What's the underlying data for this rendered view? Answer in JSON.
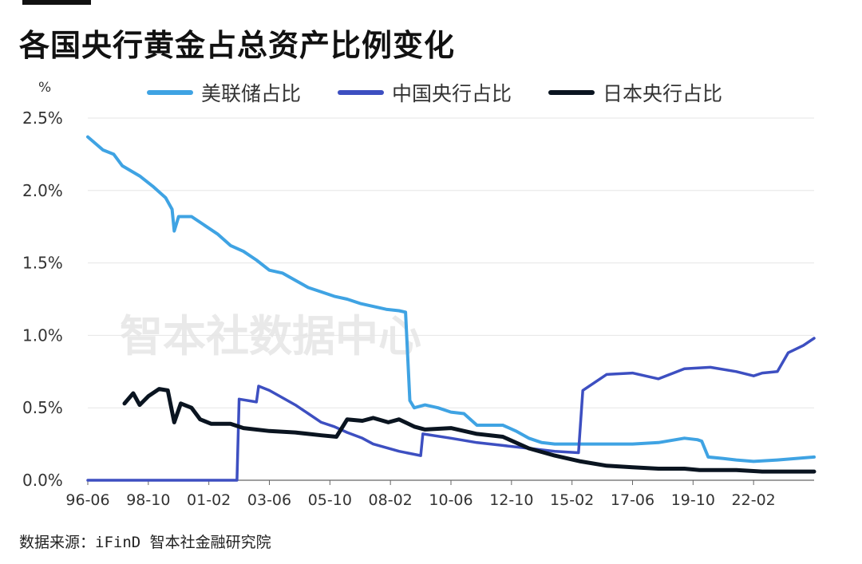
{
  "title": "各国央行黄金占总资产比例变化",
  "source": "数据来源：iFinD 智本社金融研究院",
  "watermark": "智本社数据中心",
  "chart_data": {
    "type": "line",
    "title": "各国央行黄金占总资产比例变化",
    "ylabel": "%",
    "xlabel": "",
    "ylim": [
      0,
      2.5
    ],
    "xlim": [
      "1996-06",
      "2024-06"
    ],
    "y_ticks": [
      0,
      0.5,
      1.0,
      1.5,
      2.0,
      2.5
    ],
    "y_tick_labels": [
      "0.0%",
      "0.5%",
      "1.0%",
      "1.5%",
      "2.0%",
      "2.5%"
    ],
    "x_ticks": [
      "96-06",
      "98-10",
      "01-02",
      "03-06",
      "05-10",
      "08-02",
      "10-06",
      "12-10",
      "15-02",
      "17-06",
      "19-10",
      "22-02"
    ],
    "grid": "horizontal",
    "legend_position": "top",
    "series": [
      {
        "name": "美联储占比",
        "color": "#3fa3e3",
        "points": [
          [
            "1996-06",
            2.37
          ],
          [
            "1997-01",
            2.28
          ],
          [
            "1997-06",
            2.25
          ],
          [
            "1997-10",
            2.17
          ],
          [
            "1998-06",
            2.1
          ],
          [
            "1998-12",
            2.03
          ],
          [
            "1999-06",
            1.95
          ],
          [
            "1999-09",
            1.87
          ],
          [
            "1999-10",
            1.72
          ],
          [
            "1999-12",
            1.82
          ],
          [
            "2000-06",
            1.82
          ],
          [
            "2000-12",
            1.76
          ],
          [
            "2001-06",
            1.7
          ],
          [
            "2001-12",
            1.62
          ],
          [
            "2002-06",
            1.58
          ],
          [
            "2002-12",
            1.52
          ],
          [
            "2003-06",
            1.45
          ],
          [
            "2003-12",
            1.43
          ],
          [
            "2004-06",
            1.38
          ],
          [
            "2004-12",
            1.33
          ],
          [
            "2005-06",
            1.3
          ],
          [
            "2005-12",
            1.27
          ],
          [
            "2006-06",
            1.25
          ],
          [
            "2006-12",
            1.22
          ],
          [
            "2007-06",
            1.2
          ],
          [
            "2007-12",
            1.18
          ],
          [
            "2008-06",
            1.17
          ],
          [
            "2008-09",
            1.16
          ],
          [
            "2008-11",
            0.55
          ],
          [
            "2009-01",
            0.5
          ],
          [
            "2009-06",
            0.52
          ],
          [
            "2009-12",
            0.5
          ],
          [
            "2010-06",
            0.47
          ],
          [
            "2010-12",
            0.46
          ],
          [
            "2011-06",
            0.38
          ],
          [
            "2011-12",
            0.38
          ],
          [
            "2012-06",
            0.38
          ],
          [
            "2012-12",
            0.34
          ],
          [
            "2013-06",
            0.29
          ],
          [
            "2013-12",
            0.26
          ],
          [
            "2014-06",
            0.25
          ],
          [
            "2015-02",
            0.25
          ],
          [
            "2016-06",
            0.25
          ],
          [
            "2017-06",
            0.25
          ],
          [
            "2018-06",
            0.26
          ],
          [
            "2019-06",
            0.29
          ],
          [
            "2019-12",
            0.28
          ],
          [
            "2020-02",
            0.27
          ],
          [
            "2020-05",
            0.16
          ],
          [
            "2020-12",
            0.15
          ],
          [
            "2021-06",
            0.14
          ],
          [
            "2022-02",
            0.13
          ],
          [
            "2023-01",
            0.14
          ],
          [
            "2024-06",
            0.16
          ]
        ]
      },
      {
        "name": "中国央行占比",
        "color": "#3d4fc1",
        "points": [
          [
            "1996-06",
            0.0
          ],
          [
            "2002-03",
            0.0
          ],
          [
            "2002-04",
            0.56
          ],
          [
            "2002-12",
            0.54
          ],
          [
            "2003-01",
            0.65
          ],
          [
            "2003-06",
            0.62
          ],
          [
            "2003-12",
            0.57
          ],
          [
            "2004-06",
            0.52
          ],
          [
            "2004-12",
            0.46
          ],
          [
            "2005-06",
            0.4
          ],
          [
            "2005-12",
            0.37
          ],
          [
            "2006-06",
            0.33
          ],
          [
            "2007-01",
            0.29
          ],
          [
            "2007-06",
            0.25
          ],
          [
            "2008-06",
            0.2
          ],
          [
            "2009-04",
            0.17
          ],
          [
            "2009-05",
            0.32
          ],
          [
            "2010-06",
            0.29
          ],
          [
            "2011-06",
            0.26
          ],
          [
            "2012-06",
            0.24
          ],
          [
            "2013-06",
            0.22
          ],
          [
            "2014-06",
            0.2
          ],
          [
            "2015-05",
            0.19
          ],
          [
            "2015-07",
            0.62
          ],
          [
            "2016-06",
            0.73
          ],
          [
            "2017-06",
            0.74
          ],
          [
            "2018-06",
            0.7
          ],
          [
            "2019-06",
            0.77
          ],
          [
            "2020-06",
            0.78
          ],
          [
            "2021-06",
            0.75
          ],
          [
            "2022-02",
            0.72
          ],
          [
            "2022-06",
            0.74
          ],
          [
            "2023-01",
            0.75
          ],
          [
            "2023-06",
            0.88
          ],
          [
            "2024-01",
            0.93
          ],
          [
            "2024-06",
            0.98
          ]
        ]
      },
      {
        "name": "日本央行占比",
        "color": "#0a1420",
        "points": [
          [
            "1997-11",
            0.53
          ],
          [
            "1998-03",
            0.6
          ],
          [
            "1998-06",
            0.52
          ],
          [
            "1998-10",
            0.58
          ],
          [
            "1999-03",
            0.63
          ],
          [
            "1999-07",
            0.62
          ],
          [
            "1999-10",
            0.4
          ],
          [
            "2000-01",
            0.53
          ],
          [
            "2000-06",
            0.5
          ],
          [
            "2000-10",
            0.42
          ],
          [
            "2001-03",
            0.39
          ],
          [
            "2001-12",
            0.39
          ],
          [
            "2002-06",
            0.36
          ],
          [
            "2003-06",
            0.34
          ],
          [
            "2004-06",
            0.33
          ],
          [
            "2005-06",
            0.31
          ],
          [
            "2006-01",
            0.3
          ],
          [
            "2006-06",
            0.42
          ],
          [
            "2007-01",
            0.41
          ],
          [
            "2007-06",
            0.43
          ],
          [
            "2008-01",
            0.4
          ],
          [
            "2008-06",
            0.42
          ],
          [
            "2009-01",
            0.37
          ],
          [
            "2009-06",
            0.35
          ],
          [
            "2010-06",
            0.36
          ],
          [
            "2011-06",
            0.32
          ],
          [
            "2012-06",
            0.3
          ],
          [
            "2013-06",
            0.22
          ],
          [
            "2014-06",
            0.17
          ],
          [
            "2015-06",
            0.13
          ],
          [
            "2016-06",
            0.1
          ],
          [
            "2017-06",
            0.09
          ],
          [
            "2018-06",
            0.08
          ],
          [
            "2019-06",
            0.08
          ],
          [
            "2020-01",
            0.07
          ],
          [
            "2021-06",
            0.07
          ],
          [
            "2022-06",
            0.06
          ],
          [
            "2023-06",
            0.06
          ],
          [
            "2024-06",
            0.06
          ]
        ]
      }
    ]
  }
}
